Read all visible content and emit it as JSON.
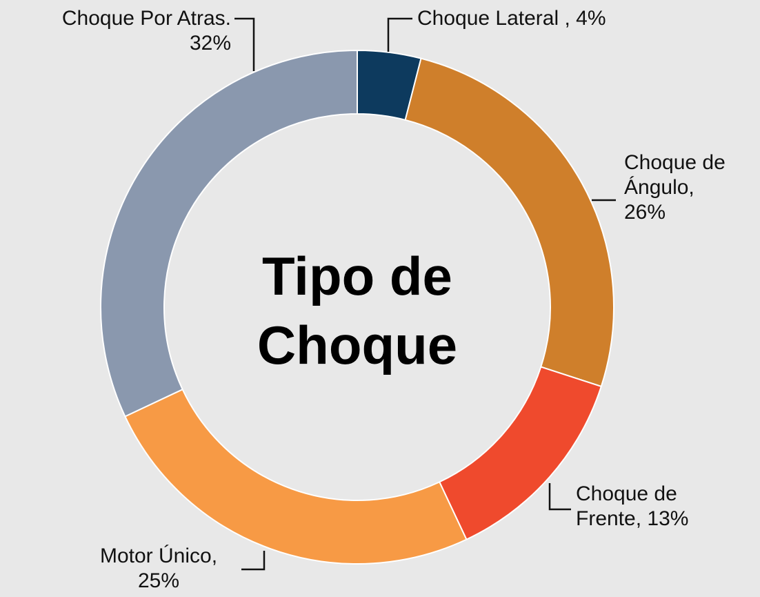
{
  "chart_data": {
    "type": "donut",
    "title": "Tipo de Choque",
    "categories": [
      "Choque Lateral ,",
      "Choque de Ángulo,",
      "Choque de Frente,",
      "Motor Único,",
      "Choque Por Atras."
    ],
    "values": [
      4,
      26,
      13,
      25,
      32
    ],
    "value_labels": [
      "4%",
      "26%",
      "13%",
      "25%",
      "32%"
    ],
    "colors": [
      "#0d3a5e",
      "#cf7f2b",
      "#ef4a2d",
      "#f79a45",
      "#8a98ae"
    ]
  }
}
